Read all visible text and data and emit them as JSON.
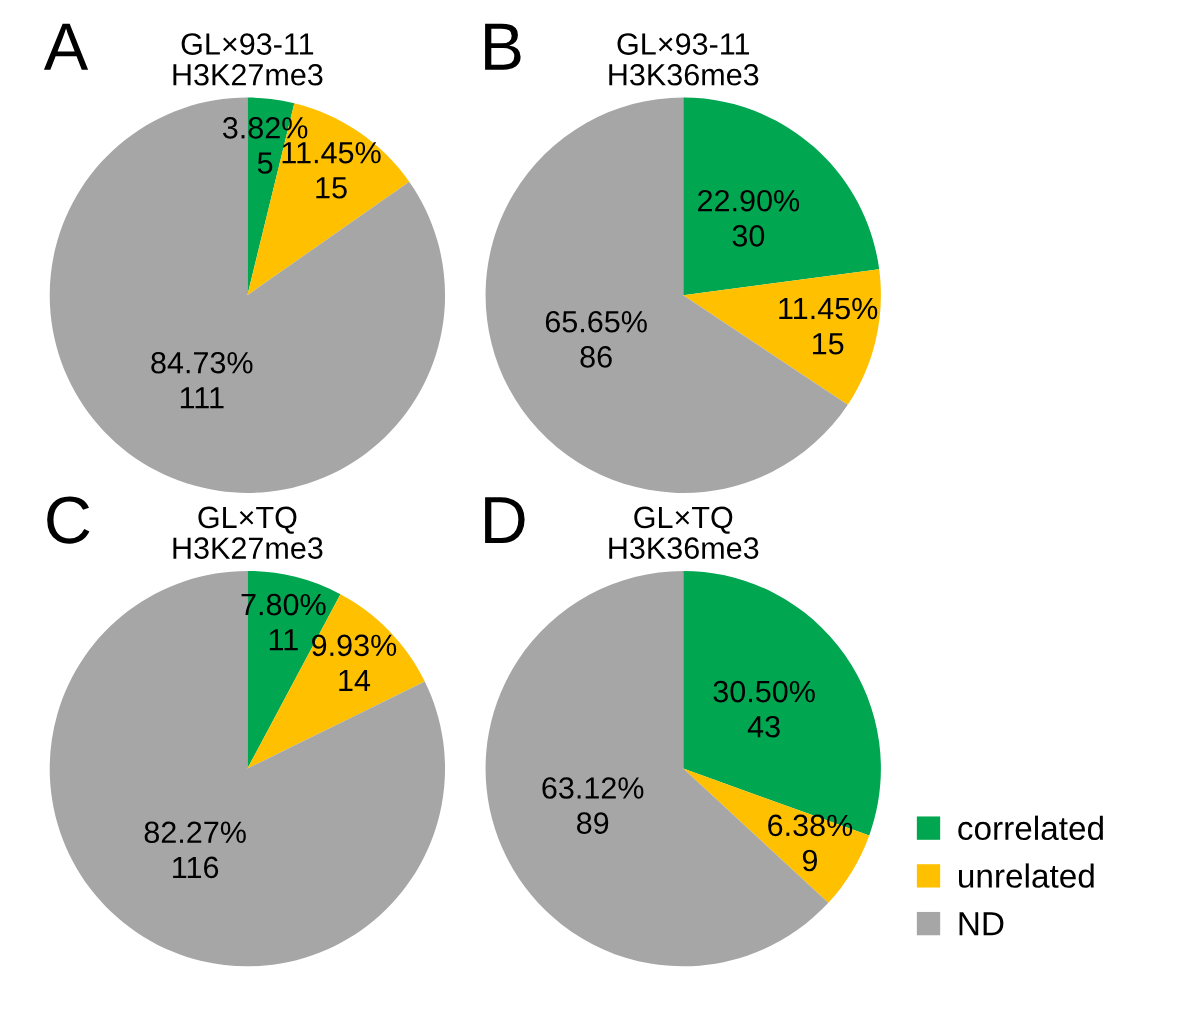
{
  "chart_data": [
    {
      "type": "pie",
      "title": "GL×93-11\nH3K27me3",
      "annotations": [
        "A"
      ],
      "categories": [
        null,
        null,
        null
      ],
      "values": [
        5,
        15,
        111
      ],
      "colors": [
        "#00a650",
        "#ffc000",
        "#a6a6a6"
      ],
      "value_labels": [
        "3.82%\n5",
        "11.45%\n15",
        "84.73%\n111"
      ]
    },
    {
      "type": "pie",
      "title": "GL×93-11\nH3K36me3",
      "annotations": [
        "B"
      ],
      "categories": [
        null,
        null,
        null
      ],
      "values": [
        30,
        15,
        86
      ],
      "colors": [
        "#00a650",
        "#ffc000",
        "#a6a6a6"
      ],
      "value_labels": [
        "22.90%\n30",
        "11.45%\n15",
        "65.65%\n86"
      ]
    },
    {
      "type": "pie",
      "title": "GL×TQ\nH3K27me3",
      "annotations": [
        "C"
      ],
      "categories": [
        null,
        null,
        null
      ],
      "values": [
        11,
        14,
        116
      ],
      "colors": [
        "#00a650",
        "#ffc000",
        "#a6a6a6"
      ],
      "value_labels": [
        "7.80%\n11",
        "9.93%\n14",
        "82.27%\n116"
      ]
    },
    {
      "type": "pie",
      "title": "GL×TQ\nH3K36me3",
      "annotations": [
        "D"
      ],
      "categories": [
        "correlated",
        "unrelated",
        "ND"
      ],
      "values": [
        43,
        9,
        89
      ],
      "colors": [
        "#00a650",
        "#ffc000",
        "#a6a6a6"
      ],
      "value_labels": [
        "30.50%\n43",
        "6.38%\n9",
        "63.12%\n89"
      ],
      "legend": "bottom right"
    }
  ]
}
